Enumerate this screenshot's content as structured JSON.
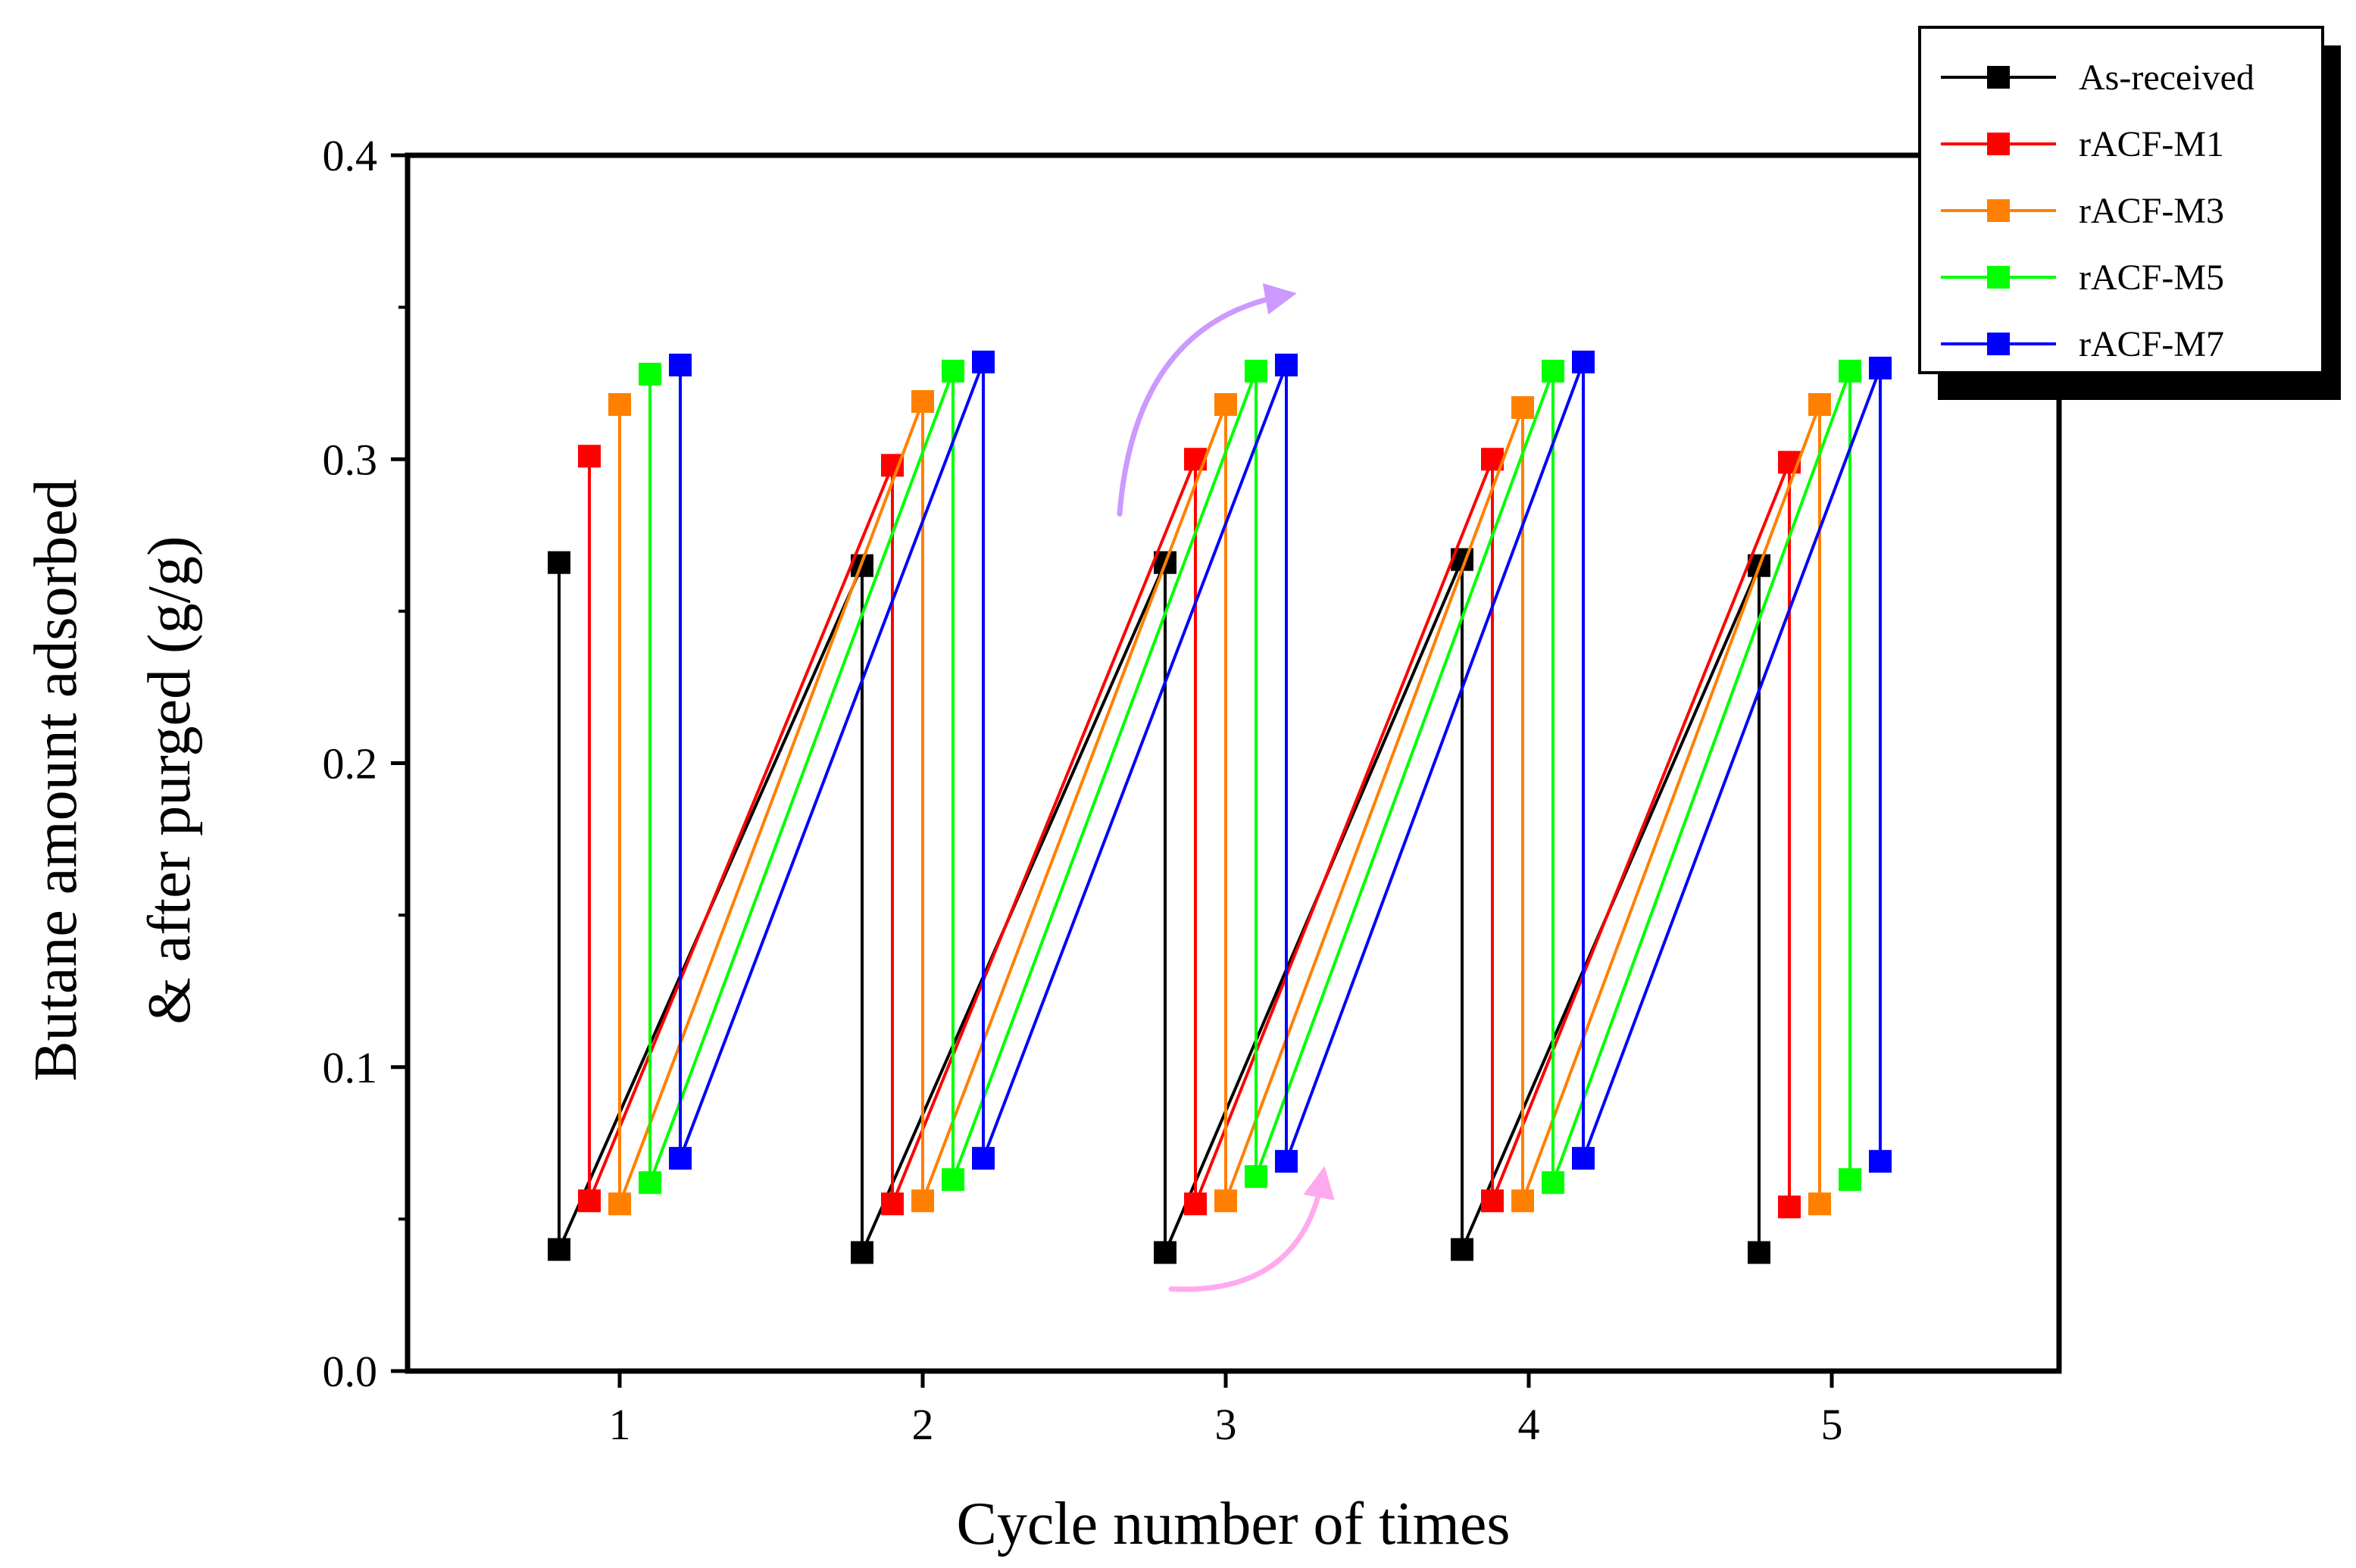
{
  "chart_data": {
    "type": "line",
    "title": "",
    "xlabel": "Cycle number of times",
    "ylabel_line1": "Butane amount adsorbed",
    "ylabel_line2": "& after purged (g/g)",
    "xlim": [
      0.3,
      5.75
    ],
    "ylim": [
      0.0,
      0.4
    ],
    "xticks": [
      1,
      2,
      3,
      4,
      5
    ],
    "xtick_labels": [
      "1",
      "2",
      "3",
      "4",
      "5"
    ],
    "yticks": [
      0.0,
      0.1,
      0.2,
      0.3,
      0.4
    ],
    "ytick_labels": [
      "0.0",
      "0.1",
      "0.2",
      "0.3",
      "0.4"
    ],
    "legend_position": "top-right",
    "series": [
      {
        "name": "As-received",
        "color": "#000000",
        "points": [
          [
            0.8,
            0.266
          ],
          [
            0.8,
            0.04
          ],
          [
            1.8,
            0.265
          ],
          [
            1.8,
            0.039
          ],
          [
            2.8,
            0.266
          ],
          [
            2.8,
            0.039
          ],
          [
            3.78,
            0.267
          ],
          [
            3.78,
            0.04
          ],
          [
            4.76,
            0.265
          ],
          [
            4.76,
            0.039
          ]
        ]
      },
      {
        "name": "rACF-M1",
        "color": "#ff0000",
        "points": [
          [
            0.9,
            0.301
          ],
          [
            0.9,
            0.056
          ],
          [
            1.9,
            0.298
          ],
          [
            1.9,
            0.055
          ],
          [
            2.9,
            0.3
          ],
          [
            2.9,
            0.055
          ],
          [
            3.88,
            0.3
          ],
          [
            3.88,
            0.056
          ],
          [
            4.86,
            0.299
          ],
          [
            4.86,
            0.054
          ]
        ]
      },
      {
        "name": "rACF-M3",
        "color": "#ff8000",
        "points": [
          [
            1.0,
            0.318
          ],
          [
            1.0,
            0.055
          ],
          [
            2.0,
            0.319
          ],
          [
            2.0,
            0.056
          ],
          [
            3.0,
            0.318
          ],
          [
            3.0,
            0.056
          ],
          [
            3.98,
            0.317
          ],
          [
            3.98,
            0.056
          ],
          [
            4.96,
            0.318
          ],
          [
            4.96,
            0.055
          ]
        ]
      },
      {
        "name": "rACF-M5",
        "color": "#00ff00",
        "points": [
          [
            1.1,
            0.328
          ],
          [
            1.1,
            0.062
          ],
          [
            2.1,
            0.329
          ],
          [
            2.1,
            0.063
          ],
          [
            3.1,
            0.329
          ],
          [
            3.1,
            0.064
          ],
          [
            4.08,
            0.329
          ],
          [
            4.08,
            0.062
          ],
          [
            5.06,
            0.329
          ],
          [
            5.06,
            0.063
          ]
        ]
      },
      {
        "name": "rACF-M7",
        "color": "#0000ff",
        "points": [
          [
            1.2,
            0.331
          ],
          [
            1.2,
            0.07
          ],
          [
            2.2,
            0.332
          ],
          [
            2.2,
            0.07
          ],
          [
            3.2,
            0.331
          ],
          [
            3.2,
            0.069
          ],
          [
            4.18,
            0.332
          ],
          [
            4.18,
            0.07
          ],
          [
            5.16,
            0.33
          ],
          [
            5.16,
            0.069
          ]
        ]
      }
    ],
    "annotations": [
      {
        "name": "adsorption-arrow",
        "color": "#cc99ff",
        "from": [
          2.65,
          0.282
        ],
        "via": [
          2.7,
          0.345
        ],
        "to": [
          3.2,
          0.354
        ]
      },
      {
        "name": "purge-arrow",
        "color": "#ffaaee",
        "from": [
          2.82,
          0.027
        ],
        "via": [
          3.25,
          0.025
        ],
        "to": [
          3.32,
          0.064
        ]
      }
    ]
  }
}
